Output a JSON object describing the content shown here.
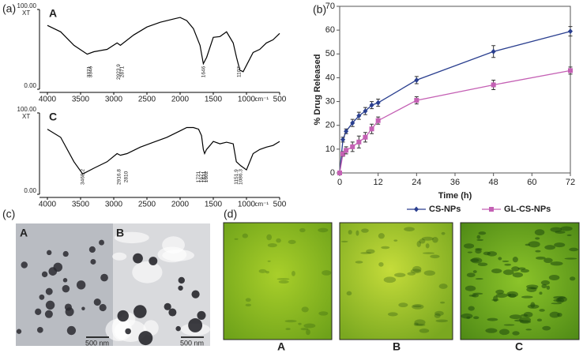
{
  "chart_data": [
    {
      "type": "line",
      "title": "A",
      "color": "#000000",
      "x": [
        4000,
        3800,
        3600,
        3400,
        3300,
        3100,
        2950,
        2900,
        2700,
        2500,
        2300,
        2100,
        2000,
        1900,
        1800,
        1700,
        1650,
        1600,
        1500,
        1400,
        1300,
        1200,
        1150,
        1100,
        1050,
        1000,
        900,
        800,
        700,
        600,
        500
      ],
      "values": [
        80,
        72,
        55,
        44,
        47,
        50,
        58,
        55,
        68,
        78,
        84,
        88,
        90,
        86,
        76,
        55,
        32,
        40,
        65,
        66,
        72,
        58,
        40,
        24,
        22,
        30,
        46,
        50,
        58,
        62,
        70
      ],
      "xlim": [
        4000,
        500
      ],
      "xticks": [
        4000,
        3500,
        3000,
        2500,
        2000,
        1500,
        1000,
        500
      ],
      "xlabel": "cm⁻¹",
      "ylim": [
        0,
        100
      ],
      "yticks": [
        {
          "value": 0,
          "label": "0.00"
        },
        {
          "value": 100,
          "label": "100.00"
        }
      ],
      "ylabel": "XT",
      "peaks": [
        3371,
        3346,
        2923.9,
        2871.0,
        1646,
        1107
      ]
    },
    {
      "type": "line",
      "title": "C",
      "color": "#000000",
      "x": [
        4000,
        3800,
        3600,
        3468,
        3300,
        3100,
        2950,
        2900,
        2800,
        2600,
        2400,
        2200,
        2000,
        1900,
        1800,
        1721,
        1677,
        1650,
        1631,
        1602,
        1550,
        1500,
        1400,
        1300,
        1200,
        1152,
        1086,
        1000,
        900,
        800,
        700,
        600,
        500
      ],
      "values": [
        80,
        70,
        40,
        25,
        32,
        40,
        50,
        48,
        50,
        58,
        64,
        70,
        78,
        82,
        82,
        80,
        72,
        55,
        50,
        55,
        60,
        65,
        62,
        64,
        62,
        40,
        35,
        30,
        50,
        55,
        58,
        60,
        65
      ],
      "xlim": [
        4000,
        500
      ],
      "xticks": [
        4000,
        3500,
        3000,
        2500,
        2000,
        1500,
        1000,
        500
      ],
      "xlabel": "cm⁻¹",
      "ylim": [
        0,
        100
      ],
      "yticks": [
        {
          "value": 0,
          "label": "0.00"
        },
        {
          "value": 100,
          "label": "100.00"
        }
      ],
      "ylabel": "XT",
      "peaks": [
        3468.2,
        2916.8,
        2810.0,
        1721,
        1677,
        1631,
        1602,
        1151.9,
        1086.3
      ]
    },
    {
      "type": "line",
      "xlabel": "Time (h)",
      "ylabel": "% Drug Released",
      "x": [
        0,
        1,
        2,
        4,
        6,
        8,
        10,
        12,
        24,
        48,
        72
      ],
      "series": [
        {
          "name": "CS-NPs",
          "color": "#2a3f8f",
          "marker": "diamond",
          "values": [
            0,
            14,
            17.5,
            21,
            24,
            26,
            28.5,
            29.5,
            39,
            51,
            59.5
          ],
          "errors": [
            0,
            1,
            1,
            1.5,
            1.5,
            1.5,
            1.5,
            1.5,
            1.5,
            2.5,
            2
          ]
        },
        {
          "name": "GL-CS-NPs",
          "color": "#c460b4",
          "marker": "square",
          "values": [
            0,
            8,
            9.5,
            11,
            13,
            15,
            18.5,
            22,
            30.5,
            37,
            43
          ],
          "errors": [
            0,
            1,
            1.5,
            2,
            2.5,
            2,
            2,
            1.5,
            1.5,
            2,
            1.5
          ]
        }
      ],
      "xlim": [
        0,
        72
      ],
      "xticks": [
        0,
        12,
        24,
        36,
        48,
        60,
        72
      ],
      "ylim": [
        0,
        70
      ],
      "yticks": [
        0,
        10,
        20,
        30,
        40,
        50,
        60,
        70
      ]
    }
  ],
  "panel_labels": [
    "(a)",
    "(b)",
    "(c)",
    "(d)"
  ],
  "tem": {
    "labels": [
      "A",
      "B"
    ],
    "scale_bars": [
      "500 nm",
      "500 nm"
    ]
  },
  "microscopy": {
    "labels": [
      "A",
      "B",
      "C"
    ]
  }
}
